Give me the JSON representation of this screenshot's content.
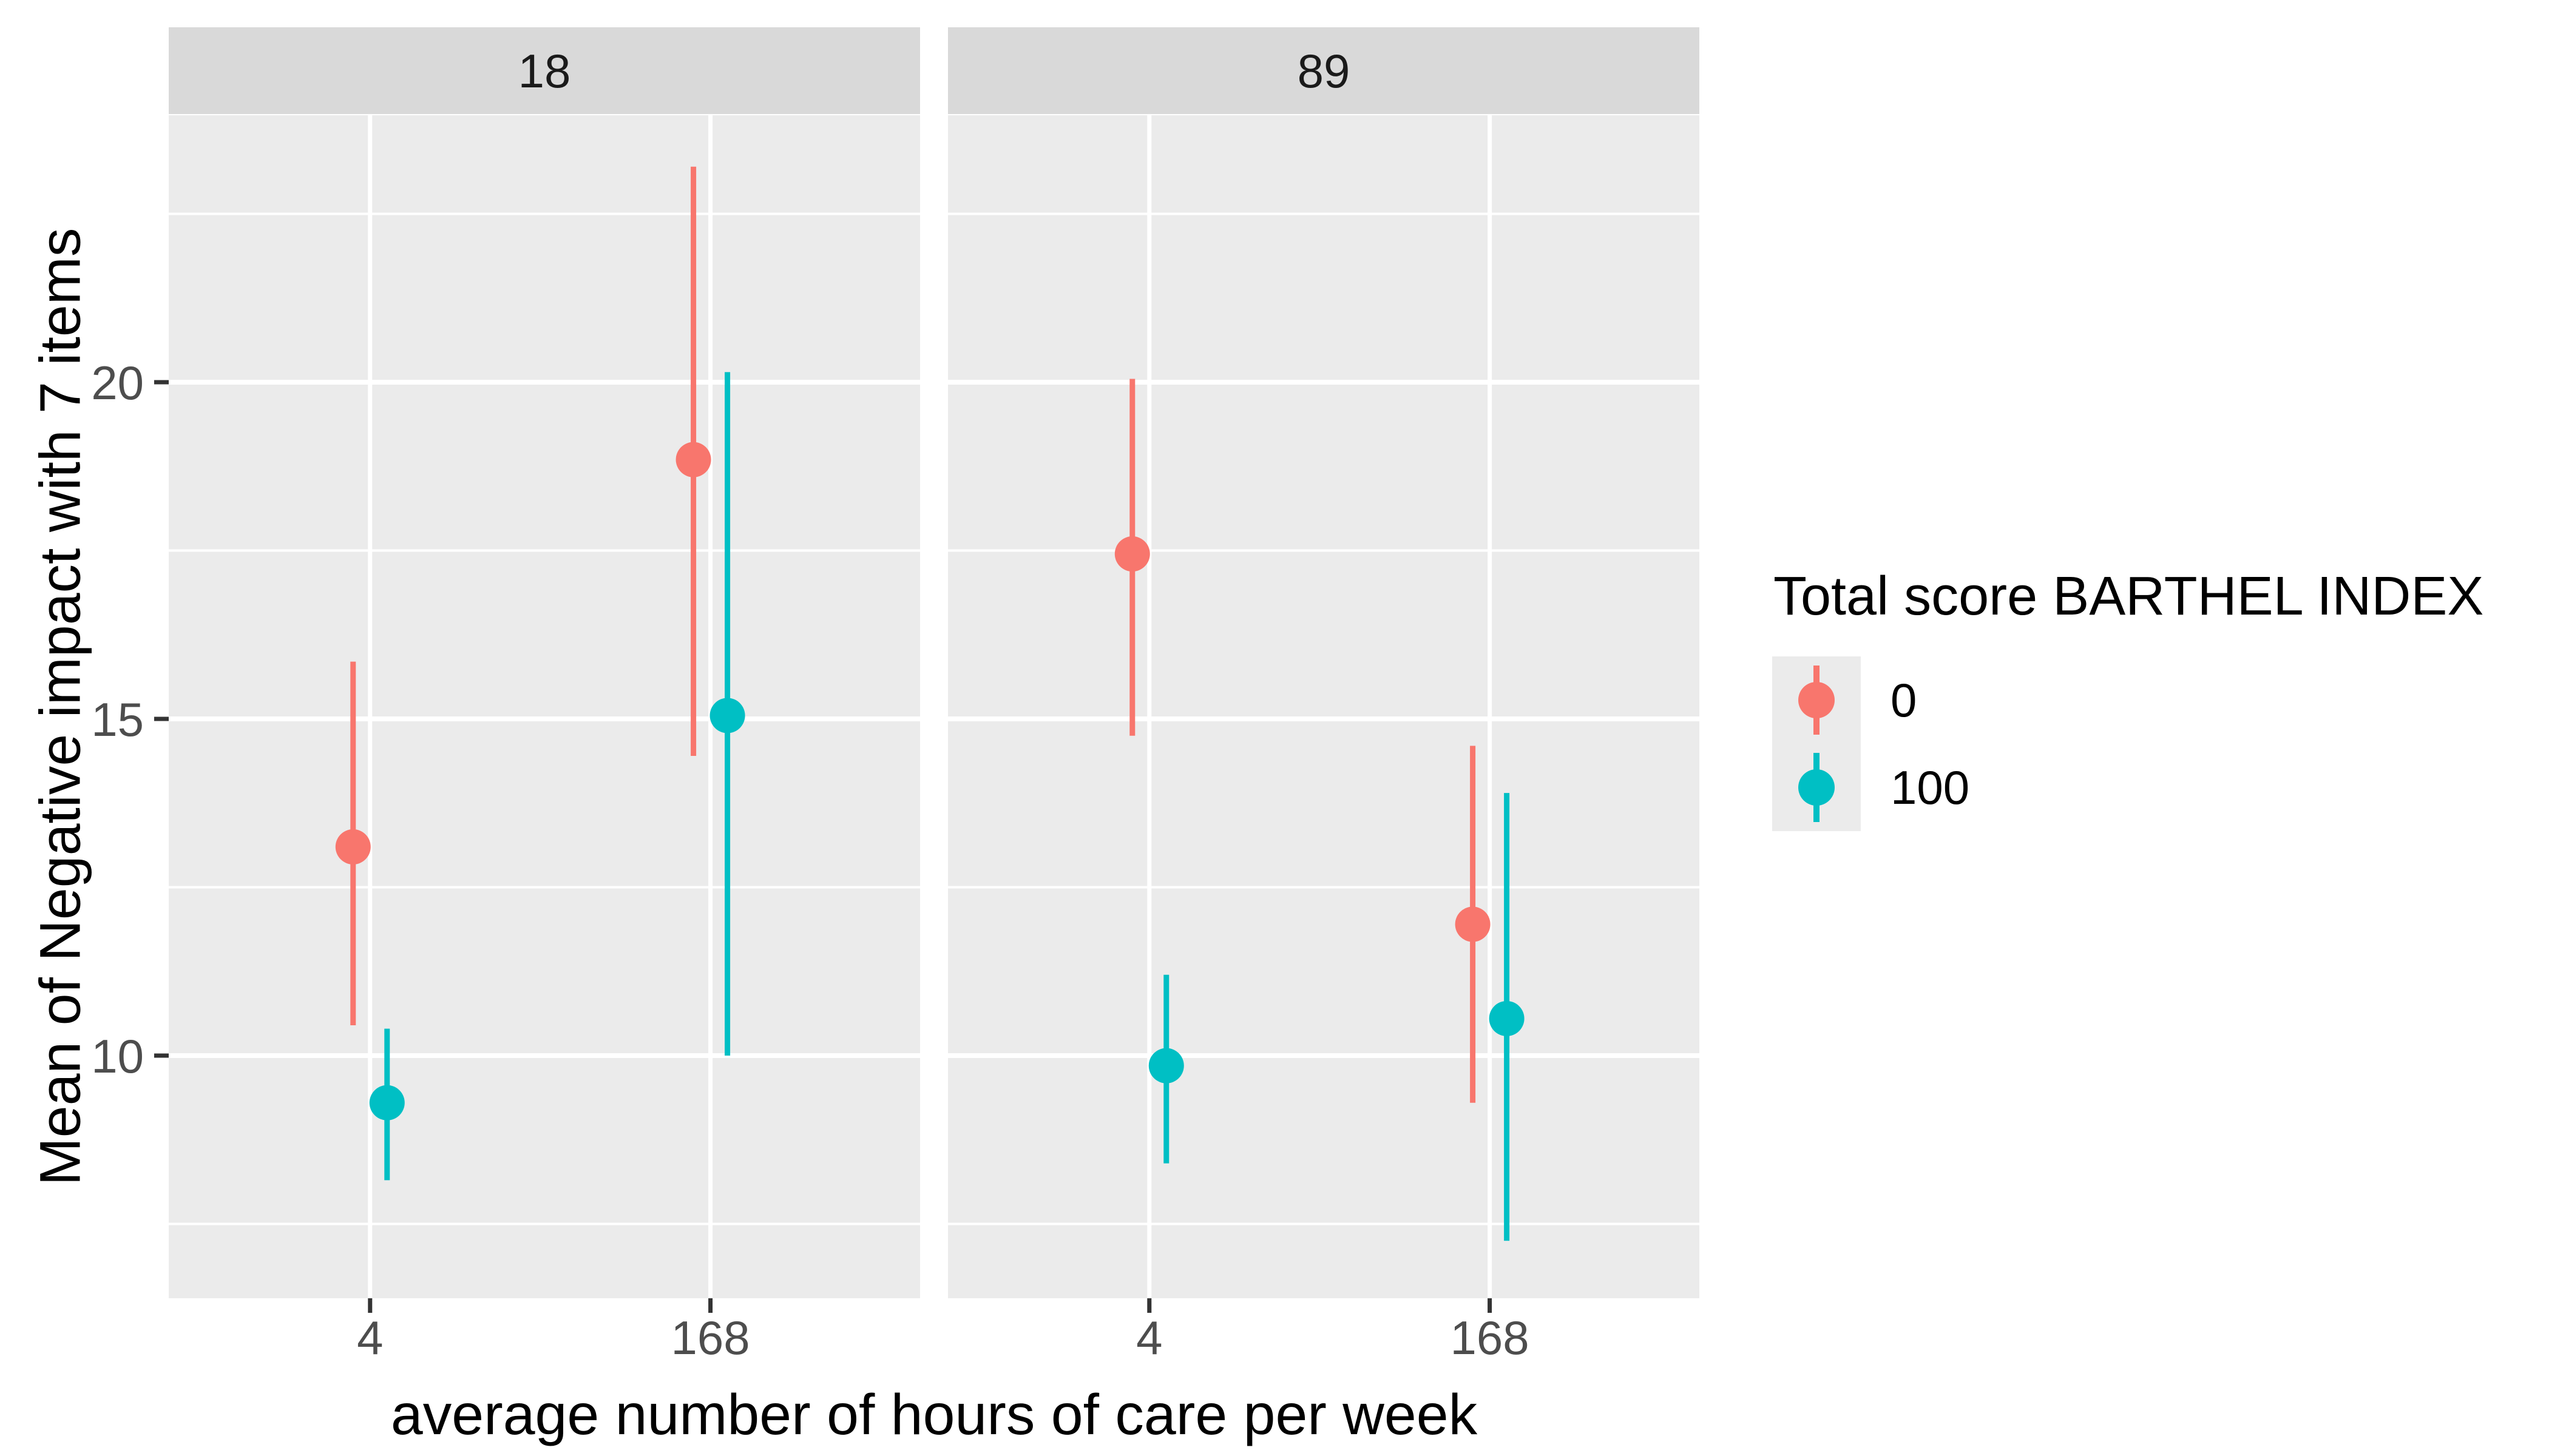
{
  "colors": {
    "background": "#FFFFFF",
    "panel_background": "#EBEBEB",
    "strip_background": "#D9D9D9",
    "gridline": "#FFFFFF",
    "tick_mark": "#333333",
    "tick_label": "#4D4D4D",
    "group_0": "#F8766D",
    "group_100": "#00BFC4"
  },
  "chart_data": {
    "type": "pointrange",
    "facet_variable_values": [
      "18",
      "89"
    ],
    "xlabel": "average number of hours of care per week",
    "ylabel": "Mean of Negative impact with 7 items",
    "x_categories": [
      "4",
      "168"
    ],
    "y_ticks": [
      20,
      15,
      10
    ],
    "y_minor_gridlines": [
      22.5,
      17.5,
      12.5,
      7.5
    ],
    "ylim": [
      6.4,
      23.95
    ],
    "grid": "on",
    "legend_position": "right",
    "legend": {
      "title": "Total score BARTHEL INDEX",
      "entries": [
        {
          "label": "0",
          "color": "#F8766D"
        },
        {
          "label": "100",
          "color": "#00BFC4"
        }
      ]
    },
    "groups": [
      {
        "name": "0",
        "color": "#F8766D"
      },
      {
        "name": "100",
        "color": "#00BFC4"
      }
    ],
    "facets": [
      {
        "label": "18",
        "points": [
          {
            "x": "4",
            "group": "0",
            "mean": 13.1,
            "lo": 10.45,
            "hi": 15.85
          },
          {
            "x": "4",
            "group": "100",
            "mean": 9.3,
            "lo": 8.15,
            "hi": 10.4
          },
          {
            "x": "168",
            "group": "0",
            "mean": 18.85,
            "lo": 14.45,
            "hi": 23.2
          },
          {
            "x": "168",
            "group": "100",
            "mean": 15.05,
            "lo": 10.0,
            "hi": 20.15
          }
        ]
      },
      {
        "label": "89",
        "points": [
          {
            "x": "4",
            "group": "0",
            "mean": 17.45,
            "lo": 14.75,
            "hi": 20.05
          },
          {
            "x": "4",
            "group": "100",
            "mean": 9.85,
            "lo": 8.4,
            "hi": 11.2
          },
          {
            "x": "168",
            "group": "0",
            "mean": 11.95,
            "lo": 9.3,
            "hi": 14.6
          },
          {
            "x": "168",
            "group": "100",
            "mean": 10.55,
            "lo": 7.25,
            "hi": 13.9
          }
        ]
      }
    ]
  }
}
